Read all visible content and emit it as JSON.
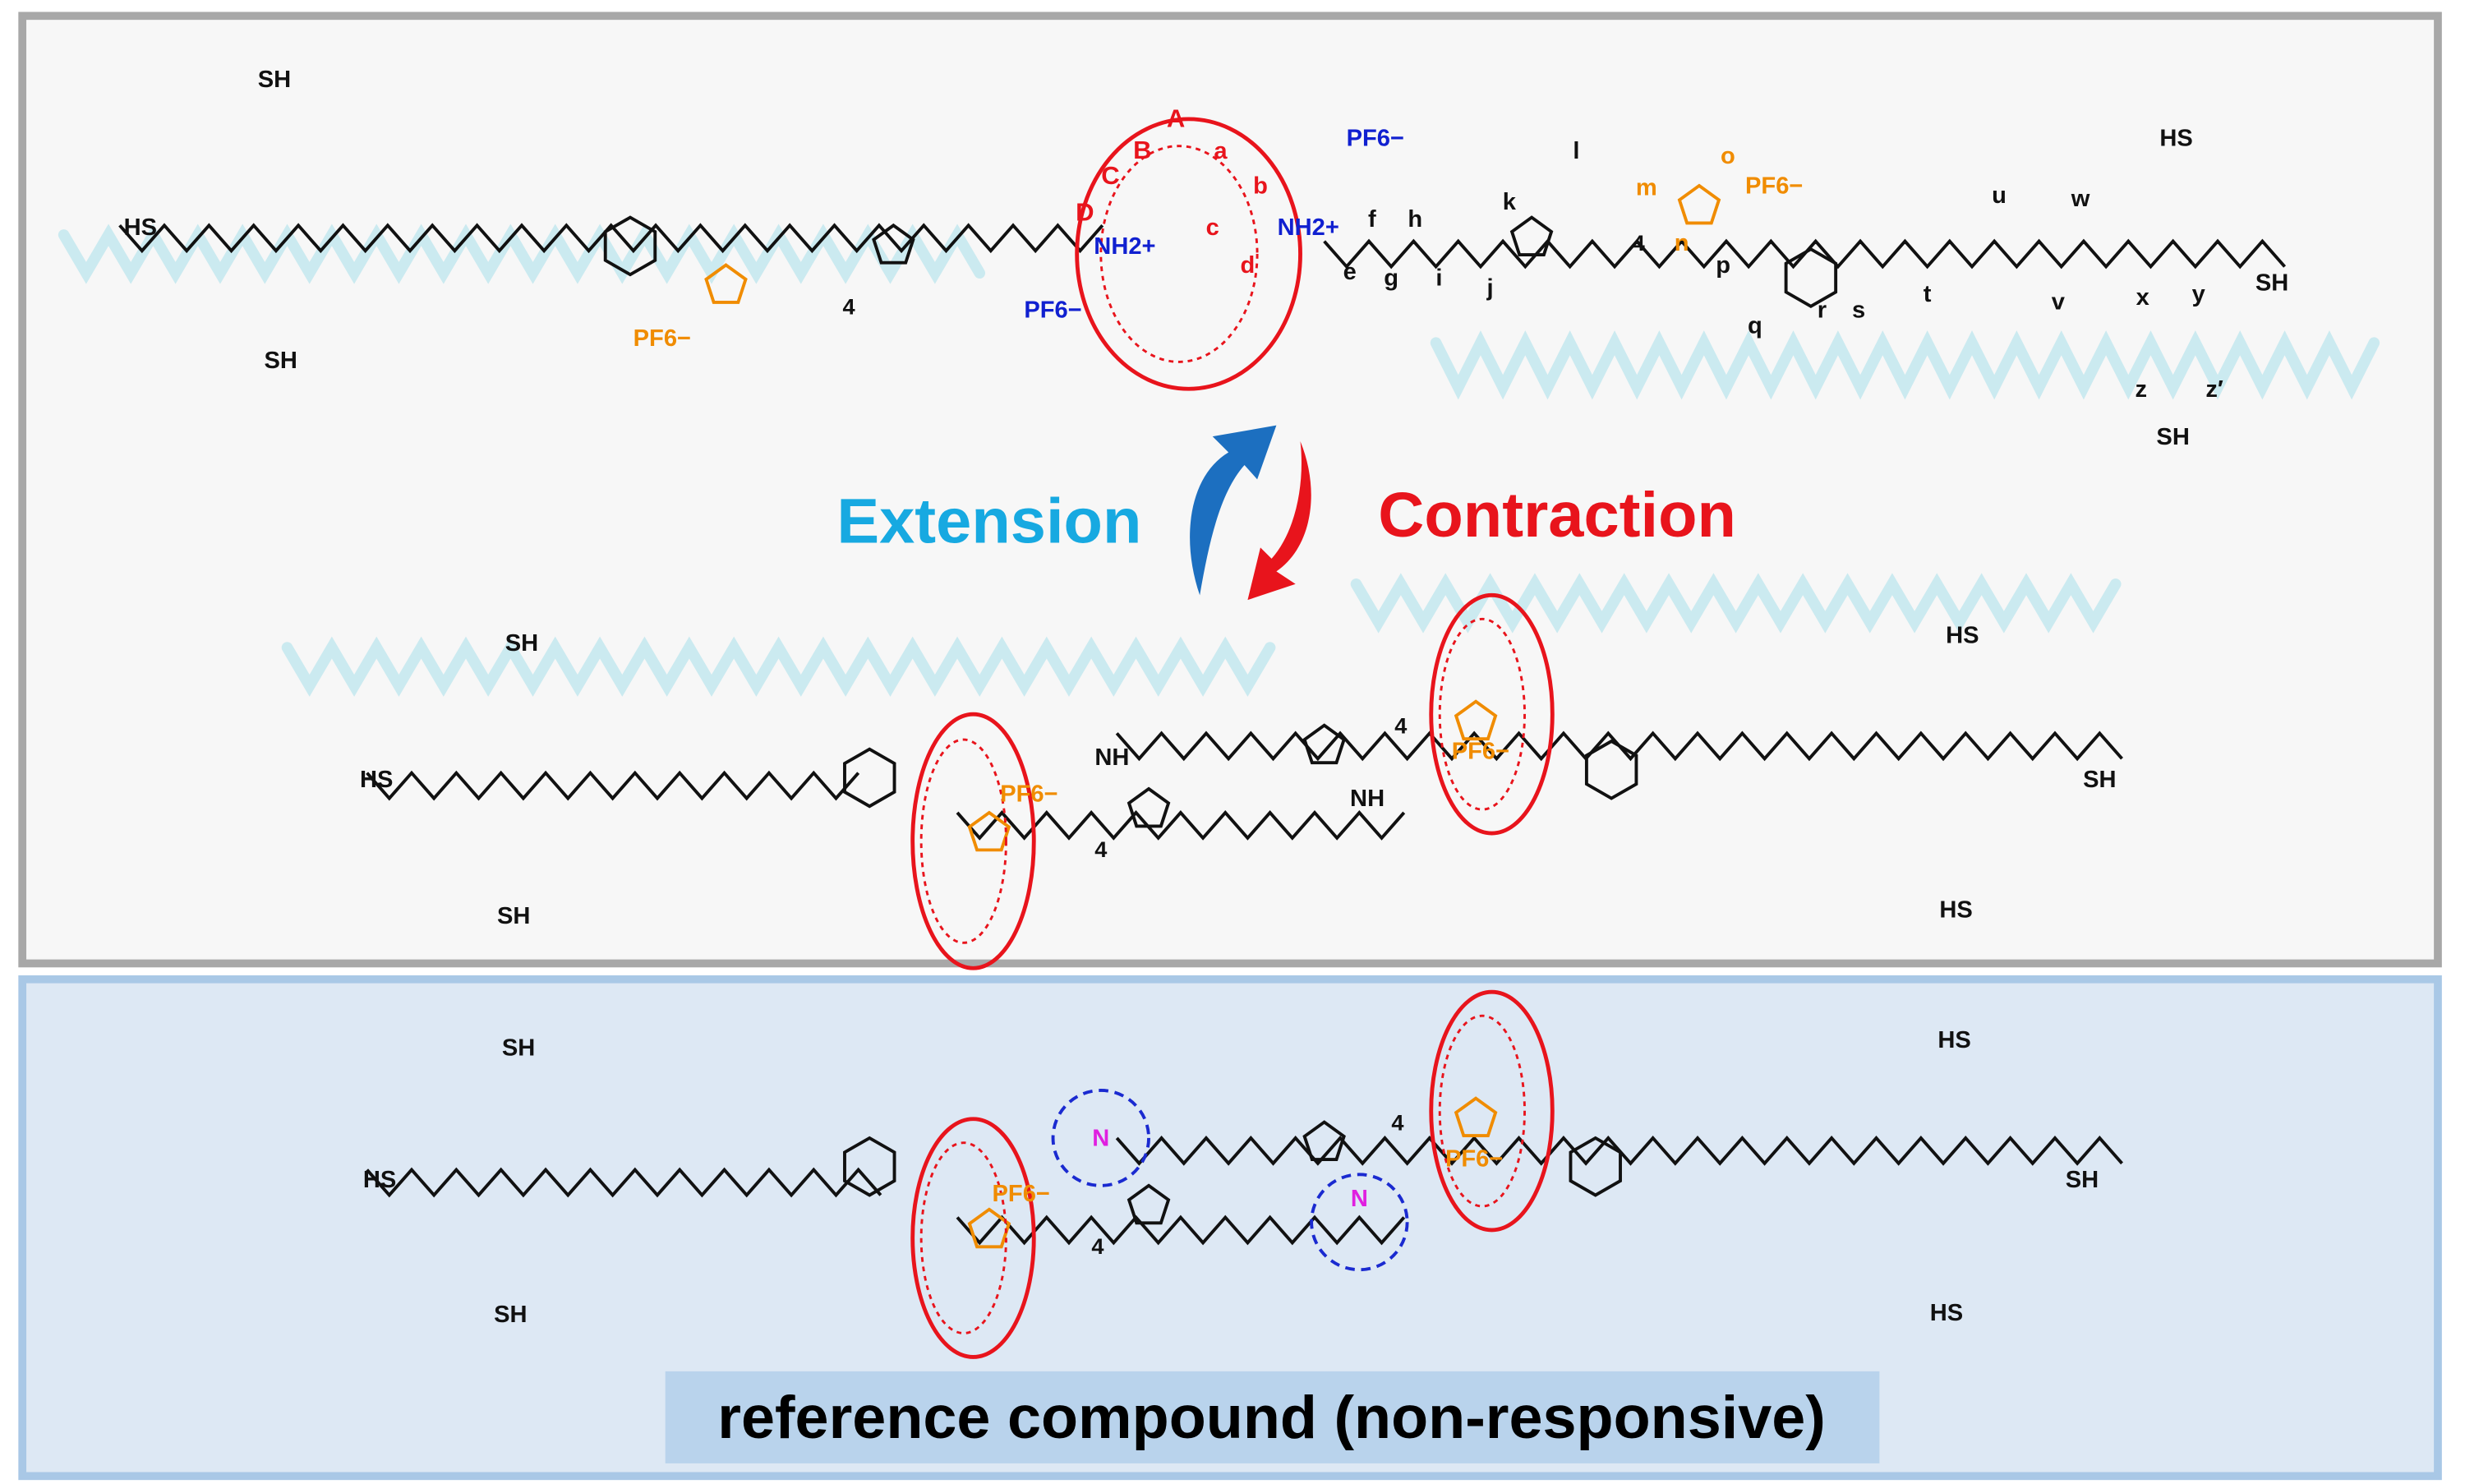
{
  "colors": {
    "top_panel_fill": "#f7f7f7",
    "top_panel_border": "#a8a8a8",
    "bottom_panel_fill": "#dde8f4",
    "bottom_panel_border": "#a9c8e6",
    "caption_fill": "#b9d3ec",
    "extension": "#17a9e1",
    "contraction": "#e8141c",
    "macrocycle": "#e8141c",
    "triazolium": "#f08c00",
    "ammonium": "#1020d0",
    "acetamide": "#e020e0",
    "bond": "#111111",
    "shadow": "#b8e4ec"
  },
  "switch": {
    "extension_label": "Extension",
    "contraction_label": "Contraction",
    "arrow_icons": [
      "curved-up-arrow-blue",
      "curved-down-arrow-red"
    ]
  },
  "top_molecule": {
    "proton_labels": [
      "a",
      "b",
      "c",
      "d",
      "e",
      "f",
      "g",
      "h",
      "i",
      "j",
      "k",
      "l",
      "m",
      "n",
      "o",
      "p",
      "q",
      "r",
      "s",
      "t",
      "u",
      "v",
      "w",
      "x",
      "y",
      "z",
      "z′"
    ],
    "ring_labels": [
      "A",
      "B",
      "C",
      "D"
    ],
    "counterions": [
      "PF6−",
      "PF6−",
      "PF6−",
      "PF6−"
    ],
    "thiols": [
      "SH",
      "HS",
      "SH",
      "HS",
      "SH",
      "SH"
    ],
    "ammonium": [
      "NH2+",
      "NH2+"
    ],
    "repeat": [
      "4",
      "4"
    ]
  },
  "middle_molecule": {
    "thiols": [
      "SH",
      "HS",
      "SH",
      "HS",
      "SH",
      "HS"
    ],
    "amines": [
      "NH",
      "NH"
    ],
    "counterions": [
      "PF6−",
      "PF6−"
    ],
    "repeat": [
      "4",
      "4"
    ]
  },
  "reference_molecule": {
    "thiols": [
      "SH",
      "HS",
      "SH",
      "HS",
      "SH",
      "HS"
    ],
    "counterions": [
      "PF6−",
      "PF6−"
    ],
    "repeat": [
      "4",
      "4"
    ],
    "acetamide_N": [
      "N",
      "N"
    ]
  },
  "caption": "reference compound (non-responsive)"
}
